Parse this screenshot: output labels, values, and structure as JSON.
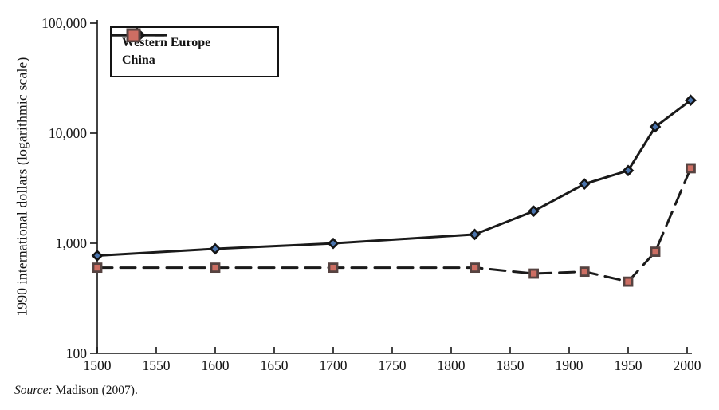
{
  "chart_data": {
    "type": "line",
    "title": "",
    "xlabel": "",
    "ylabel": "1990 international dollars (logarithmic scale)",
    "y_scale": "log",
    "ylim": [
      100,
      100000
    ],
    "xlim": [
      1500,
      2005
    ],
    "grid": false,
    "legend_position": "top-left",
    "x": [
      1500,
      1600,
      1700,
      1820,
      1870,
      1913,
      1950,
      1973,
      2003
    ],
    "series": [
      {
        "name": "Western Europe",
        "values": [
          771,
          890,
          997,
          1204,
          1960,
          3458,
          4579,
          11417,
          19912
        ],
        "line_style": "solid",
        "line_color": "#1a1a1a",
        "marker": "diamond",
        "marker_fill": "#4a74ad",
        "marker_border": "#141414"
      },
      {
        "name": "China",
        "values": [
          600,
          600,
          600,
          600,
          530,
          552,
          448,
          838,
          4803
        ],
        "line_style": "dashed",
        "line_color": "#1a1a1a",
        "marker": "square",
        "marker_fill": "#cd6e63",
        "marker_border": "#564341"
      }
    ],
    "x_ticks": [
      1500,
      1550,
      1600,
      1650,
      1700,
      1750,
      1800,
      1850,
      1900,
      1950,
      2000
    ],
    "x_tick_labels": [
      "1500",
      "1550",
      "1600",
      "1650",
      "1700",
      "1750",
      "1800",
      "1850",
      "1900",
      "1950",
      "2000"
    ],
    "y_ticks": [
      100,
      1000,
      10000,
      100000
    ],
    "y_tick_labels": [
      "100",
      "1,000",
      "10,000",
      "100,000"
    ]
  },
  "legend": {
    "items": [
      {
        "label": "Western Europe"
      },
      {
        "label": "China"
      }
    ]
  },
  "source_note": {
    "prefix": "Source:",
    "text": " Madison (2007)."
  },
  "colors": {
    "axis": "#141414",
    "text": "#141414",
    "background": "#ffffff",
    "western_europe_marker": "#4a74ad",
    "china_marker": "#cd6e63",
    "china_marker_border": "#564341"
  }
}
